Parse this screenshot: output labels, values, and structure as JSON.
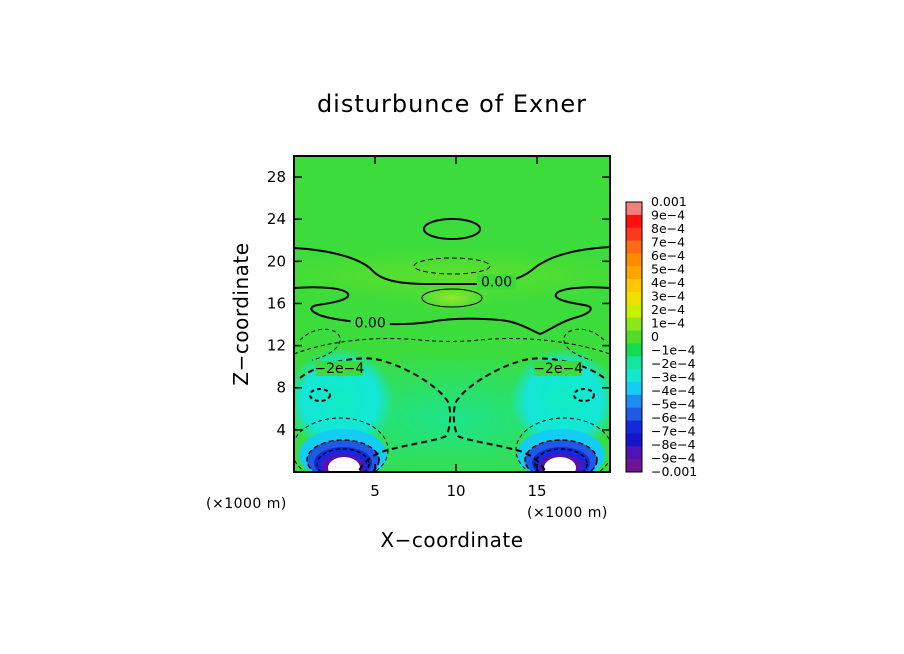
{
  "chart_data": {
    "type": "heatmap",
    "title": "disturbunce of Exner",
    "xlabel": "X−coordinate",
    "ylabel": "Z−coordinate",
    "x_unit_label": "(×1000 m)",
    "y_unit_label": "(×1000 m)",
    "xlim": [
      0,
      19.5
    ],
    "ylim": [
      0,
      30
    ],
    "x_ticks": [
      {
        "value": 5,
        "label": "5"
      },
      {
        "value": 10,
        "label": "10"
      },
      {
        "value": 15,
        "label": "15"
      }
    ],
    "y_ticks": [
      {
        "value": 4,
        "label": "4"
      },
      {
        "value": 8,
        "label": "8"
      },
      {
        "value": 12,
        "label": "12"
      },
      {
        "value": 16,
        "label": "16"
      },
      {
        "value": 20,
        "label": "20"
      },
      {
        "value": 24,
        "label": "24"
      },
      {
        "value": 28,
        "label": "28"
      }
    ],
    "colorbar": {
      "labels": [
        "0.001",
        "9e−4",
        "8e−4",
        "7e−4",
        "6e−4",
        "5e−4",
        "4e−4",
        "3e−4",
        "2e−4",
        "1e−4",
        "0",
        "−1e−4",
        "−2e−4",
        "−3e−4",
        "−4e−4",
        "−5e−4",
        "−6e−4",
        "−7e−4",
        "−8e−4",
        "−9e−4",
        "−0.001"
      ],
      "colors": [
        "#f08080",
        "#ff1010",
        "#ff3a1a",
        "#ff6a1a",
        "#ff8c00",
        "#ffa500",
        "#ffc800",
        "#f0e000",
        "#c8f000",
        "#8ce61e",
        "#50dc28",
        "#14dc50",
        "#14e6a0",
        "#14e6d2",
        "#14cdf5",
        "#1e8cf0",
        "#1e5ae6",
        "#1428dc",
        "#1414c8",
        "#5014b4",
        "#6e1496"
      ],
      "range": [
        -0.001,
        0.001
      ]
    },
    "contour_labels": [
      {
        "text": "0.00",
        "x": 12.5,
        "z": 17.7
      },
      {
        "text": "0.00",
        "x": 4.7,
        "z": 13.8
      },
      {
        "text": "−2e−4",
        "x": 2.8,
        "z": 9.5
      },
      {
        "text": "−2e−4",
        "x": 16.3,
        "z": 9.5
      }
    ]
  }
}
